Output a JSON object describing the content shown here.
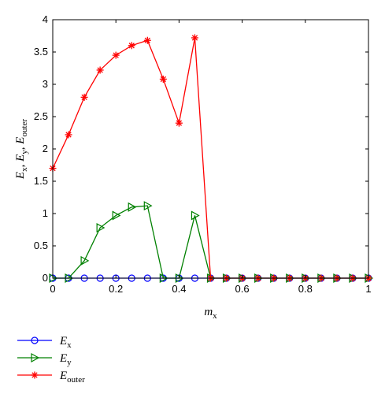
{
  "chart_data": {
    "type": "line",
    "xlabel": {
      "main": "m",
      "sub": "x"
    },
    "ylabel": [
      {
        "main": "E",
        "sub": "x"
      },
      {
        "sep": ", "
      },
      {
        "main": "E",
        "sub": "y"
      },
      {
        "sep": ", "
      },
      {
        "main": "E",
        "sub": "outer"
      }
    ],
    "xlim": [
      0,
      1
    ],
    "ylim": [
      0,
      4
    ],
    "xticks": [
      0,
      0.2,
      0.4,
      0.6,
      0.8,
      1
    ],
    "xtick_labels": [
      "0",
      "0.2",
      "0.4",
      "0.6",
      "0.8",
      "1"
    ],
    "yticks": [
      0,
      0.5,
      1,
      1.5,
      2,
      2.5,
      3,
      3.5,
      4
    ],
    "ytick_labels": [
      "0",
      "0.5",
      "1",
      "1.5",
      "2",
      "2.5",
      "3",
      "3.5",
      "4"
    ],
    "grid": false,
    "legend": "below",
    "x": [
      0,
      0.05,
      0.1,
      0.15,
      0.2,
      0.25,
      0.3,
      0.35,
      0.4,
      0.45,
      0.5,
      0.55,
      0.6,
      0.65,
      0.7,
      0.75,
      0.8,
      0.85,
      0.9,
      0.95,
      1
    ],
    "series": [
      {
        "label": {
          "main": "E",
          "sub": "x"
        },
        "color": "#0000ff",
        "marker": "circle",
        "values": [
          0,
          0,
          0,
          0,
          0,
          0,
          0,
          0,
          0,
          0,
          0,
          0,
          0,
          0,
          0,
          0,
          0,
          0,
          0,
          0,
          0
        ]
      },
      {
        "label": {
          "main": "E",
          "sub": "y"
        },
        "color": "#008000",
        "marker": "triangle-right",
        "values": [
          0,
          0,
          0.27,
          0.78,
          0.97,
          1.1,
          1.12,
          0,
          0,
          0.97,
          0,
          0,
          0,
          0,
          0,
          0,
          0,
          0,
          0,
          0,
          0
        ]
      },
      {
        "label": {
          "main": "E",
          "sub": "outer"
        },
        "color": "#ff0000",
        "marker": "asterisk",
        "values": [
          1.7,
          2.22,
          2.8,
          3.22,
          3.45,
          3.6,
          3.68,
          3.08,
          2.4,
          3.72,
          0,
          0,
          0,
          0,
          0,
          0,
          0,
          0,
          0,
          0,
          0
        ]
      }
    ]
  }
}
